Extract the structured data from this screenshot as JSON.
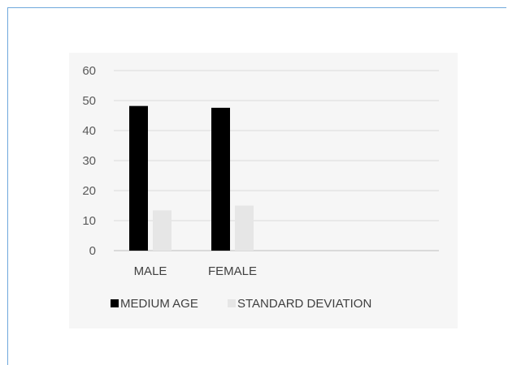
{
  "chart_data": {
    "type": "bar",
    "categories": [
      "MALE",
      "FEMALE"
    ],
    "series": [
      {
        "name": "MEDIUM AGE",
        "values": [
          48.2,
          47.6
        ],
        "color": "#000000"
      },
      {
        "name": "STANDARD DEVIATION",
        "values": [
          13.4,
          15.0
        ],
        "color": "#e6e6e6"
      }
    ],
    "yticks": [
      "0",
      "10",
      "20",
      "30",
      "40",
      "50",
      "60"
    ],
    "ylim": [
      0,
      60
    ],
    "grid": true,
    "legend_position": "bottom",
    "title": "",
    "xlabel": "",
    "ylabel": ""
  }
}
